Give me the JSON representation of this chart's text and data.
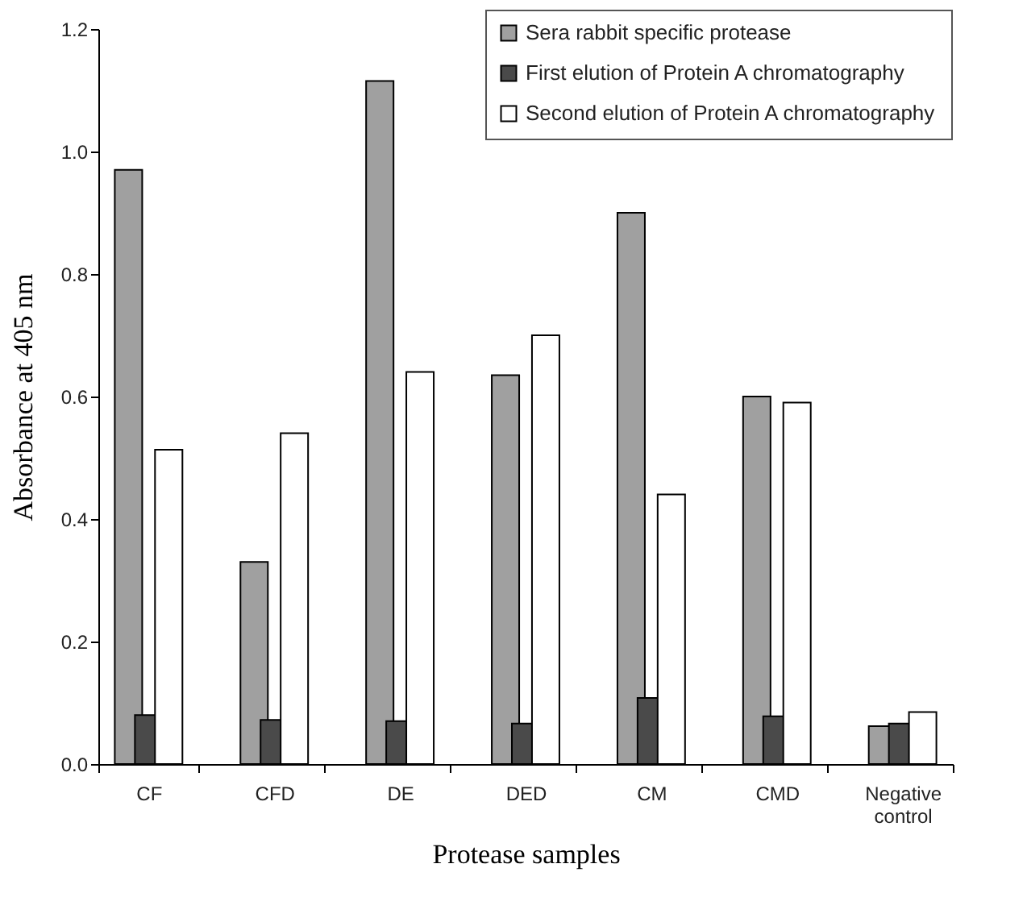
{
  "chart_data": {
    "type": "bar",
    "xlabel": "Protease samples",
    "ylabel": "Absorbance at 405 nm",
    "categories": [
      "CF",
      "CFD",
      "DE",
      "DED",
      "CM",
      "CMD",
      "Negative control"
    ],
    "series": [
      {
        "name": "Sera rabbit specific protease",
        "color": "#a0a0a0",
        "values": [
          0.97,
          0.33,
          1.115,
          0.635,
          0.9,
          0.6,
          0.062
        ]
      },
      {
        "name": "First elution of Protein A chromatography",
        "color": "#4a4a4a",
        "values": [
          0.08,
          0.072,
          0.07,
          0.066,
          0.108,
          0.078,
          0.066
        ]
      },
      {
        "name": "Second elution of Protein A chromatography",
        "color": "#ffffff",
        "values": [
          0.513,
          0.54,
          0.64,
          0.7,
          0.44,
          0.59,
          0.085
        ]
      }
    ],
    "ylim": [
      0,
      1.2
    ],
    "yticks": [
      {
        "value": 0,
        "label": "0.0"
      },
      0.2,
      0.4,
      0.6,
      0.8,
      {
        "value": 1,
        "label": "1.0"
      },
      1.2
    ],
    "grid": false,
    "legend": "top right"
  }
}
